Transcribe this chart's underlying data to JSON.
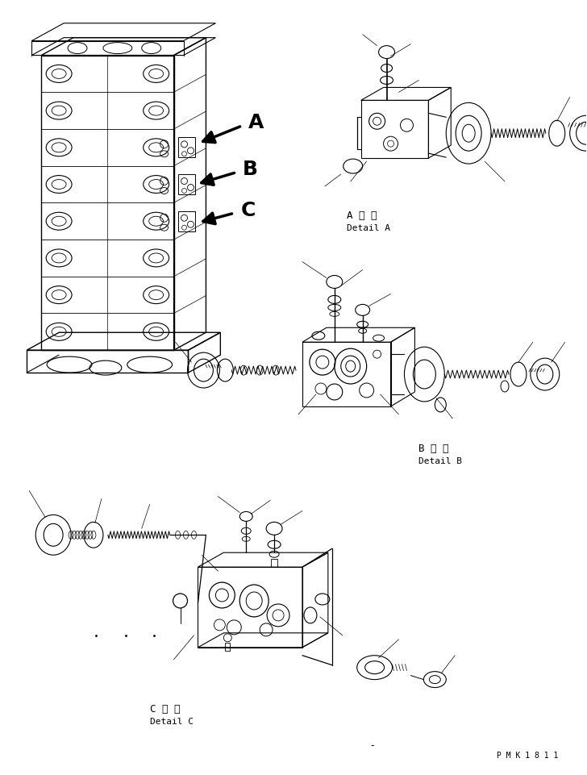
{
  "background_color": "#ffffff",
  "fig_width": 7.28,
  "fig_height": 9.62,
  "dpi": 100,
  "label_A": "A",
  "label_B": "B",
  "label_C": "C",
  "detail_a_ja": "A 詳 細",
  "detail_a_en": "Detail A",
  "detail_b_ja": "B 詳 細",
  "detail_b_en": "Detail B",
  "detail_c_ja": "C 詳 細",
  "detail_c_en": "Detail C",
  "stamp": "P M K 1 8 1 1"
}
